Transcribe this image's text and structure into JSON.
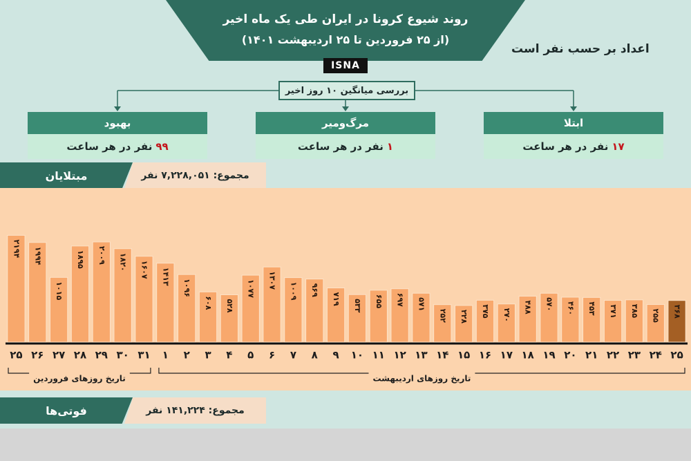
{
  "header": {
    "title": "روند شیوع کرونا در ایران طی یک ماه اخیر",
    "subtitle": "(از ۲۵ فروردین تا ۲۵ اردیبهشت ۱۴۰۱)",
    "source": "ISNA",
    "unit_note": "اعداد بر حسب نفر است"
  },
  "summary": {
    "title": "بررسی میانگین ۱۰ روز اخیر",
    "boxes": [
      {
        "label": "بهبود",
        "value": "۹۹",
        "unit": "نفر در هر ساعت"
      },
      {
        "label": "مرگ‌ومیر",
        "value": "۱",
        "unit": "نفر در هر ساعت"
      },
      {
        "label": "ابتلا",
        "value": "۱۷",
        "unit": "نفر در هر ساعت"
      }
    ]
  },
  "infected": {
    "label": "مبتلایان",
    "total": "مجموع: ۷,۲۲۸,۰۵۱ نفر"
  },
  "chart_data": {
    "type": "bar",
    "categories": [
      "۲۵",
      "۲۶",
      "۲۷",
      "۲۸",
      "۲۹",
      "۳۰",
      "۳۱",
      "۱",
      "۲",
      "۳",
      "۴",
      "۵",
      "۶",
      "۷",
      "۸",
      "۹",
      "۱۰",
      "۱۱",
      "۱۲",
      "۱۳",
      "۱۴",
      "۱۵",
      "۱۶",
      "۱۷",
      "۱۸",
      "۱۹",
      "۲۰",
      "۲۱",
      "۲۲",
      "۲۳",
      "۲۴",
      "۲۵"
    ],
    "values": [
      2194,
      1994,
      1015,
      1895,
      2009,
      1820,
      1607,
      1413,
      1096,
      608,
      528,
      1077,
      1307,
      1009,
      969,
      719,
      533,
      655,
      697,
      571,
      252,
      228,
      375,
      270,
      488,
      570,
      460,
      453,
      371,
      385,
      255,
      368
    ],
    "value_labels": [
      "۲۱۹۴",
      "۱۹۹۴",
      "۱۰۱۵",
      "۱۸۹۵",
      "۲۰۰۹",
      "۱۸۲۰",
      "۱۶۰۷",
      "۱۴۱۳",
      "۱۰۹۶",
      "۶۰۸",
      "۵۲۸",
      "۱۰۷۷",
      "۱۳۰۷",
      "۱۰۰۹",
      "۹۶۹",
      "۷۱۹",
      "۵۳۳",
      "۶۵۵",
      "۶۹۷",
      "۵۷۱",
      "۲۵۲",
      "۲۲۸",
      "۳۷۵",
      "۲۷۰",
      "۴۸۸",
      "۵۷۰",
      "۴۶۰",
      "۴۵۳",
      "۳۷۱",
      "۳۸۵",
      "۲۵۵",
      "۳۶۸"
    ],
    "x_group_labels": [
      "تاریخ روزهای فروردین",
      "تاریخ روزهای اردیبهشت"
    ],
    "ylim": [
      -800,
      2300
    ],
    "color": "#f8a86c",
    "last_color": "#a45f24"
  },
  "deaths": {
    "label": "فوتی‌ها",
    "total": "مجموع: ۱۴۱,۲۲۴ نفر"
  }
}
